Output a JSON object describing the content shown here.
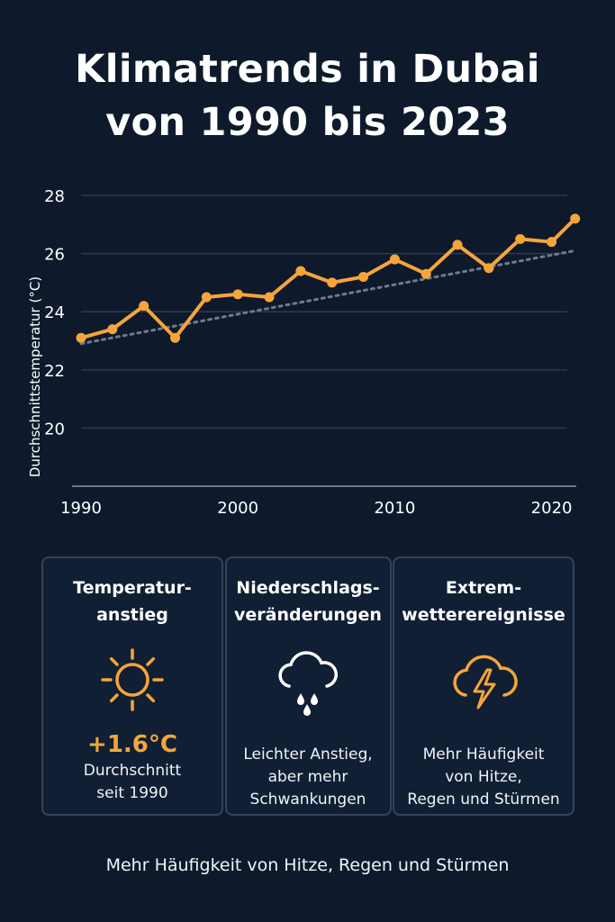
{
  "title": {
    "line1": "Klimatrends in Dubai",
    "line2": "von 1990 bis 2023"
  },
  "chart_data": {
    "type": "line",
    "ylabel": "Durchschnittstemperatur (°C)",
    "xlim": [
      1990,
      2021
    ],
    "ylim": [
      18,
      28
    ],
    "yticks": [
      20,
      22,
      24,
      26,
      28
    ],
    "xticks": [
      1990,
      2000,
      2010,
      2020
    ],
    "grid": true,
    "series": [
      {
        "type": "line",
        "color": "#f5a53a",
        "x": [
          1990,
          1992,
          1994,
          1996,
          1998,
          2000,
          2002,
          2004,
          2006,
          2008,
          2010,
          2012,
          2014,
          2016,
          2018,
          2020,
          2021.5
        ],
        "y": [
          23.1,
          23.4,
          24.2,
          23.1,
          24.5,
          24.6,
          24.5,
          25.4,
          25.0,
          25.2,
          25.8,
          25.3,
          26.3,
          25.5,
          26.5,
          26.4,
          27.2
        ]
      },
      {
        "type": "trend",
        "color": "#6f7a8a",
        "x": [
          1990,
          2021.5
        ],
        "y": [
          22.9,
          26.1
        ]
      }
    ]
  },
  "cards": [
    {
      "title": "Temperatur-\nanstieg",
      "icon": "sun-icon",
      "value": "+1.6°C",
      "desc": "Durchschnitt\nseit 1990"
    },
    {
      "title": "Niederschlags-\nveränderungen",
      "icon": "rain-cloud-icon",
      "desc": "Leichter Anstieg,\naber mehr\nSchwankungen"
    },
    {
      "title": "Extrem-\nwetterereignisse",
      "icon": "storm-cloud-icon",
      "desc": "Mehr Häufigkeit\nvon Hitze,\nRegen und Stürmen"
    }
  ],
  "footer": "Mehr Häufigkeit von Hitze, Regen und Stürmen",
  "colors": {
    "background": "#0e1a2c",
    "accent": "#f5a53a",
    "trend": "#6f7a8a",
    "card_border": "#34425a"
  }
}
